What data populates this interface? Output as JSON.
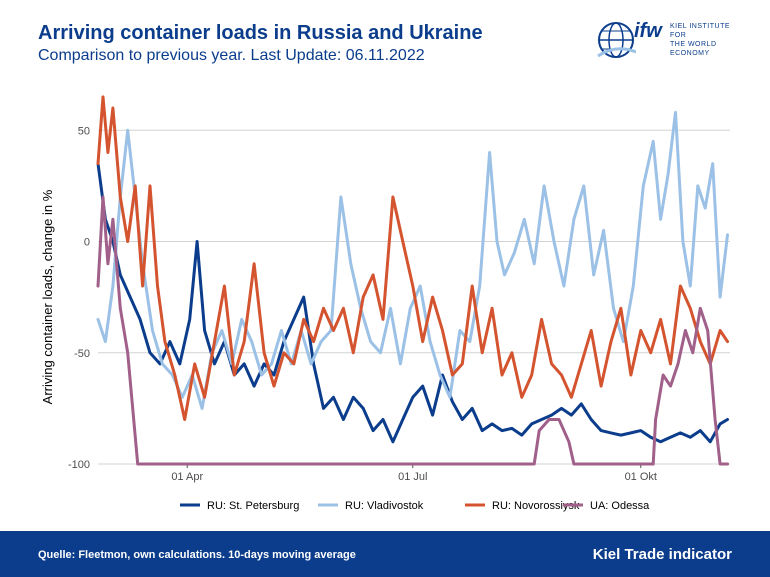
{
  "header": {
    "title": "Arriving container loads in Russia and Ukraine",
    "subtitle": "Comparison to previous year. Last Update: 06.11.2022"
  },
  "logo": {
    "brand": "ifw",
    "line1": "KIEL INSTITUTE FOR",
    "line2": "THE WORLD ECONOMY",
    "icon": "globe-icon"
  },
  "footer": {
    "source": "Quelle: Fleetmon, own calculations. 10-days moving average",
    "brand": "Kiel Trade indicator",
    "background": "#0b3d8c"
  },
  "chart_data": {
    "type": "line",
    "title": "",
    "xlabel": "",
    "ylabel": "Arriving container loads, change in %",
    "ylim": [
      -100,
      60
    ],
    "yticks": [
      -100,
      -50,
      0,
      50
    ],
    "xlim": [
      "2022-02-24",
      "2022-11-06"
    ],
    "xticks": [
      {
        "date": "2022-04-01",
        "label": "01 Apr"
      },
      {
        "date": "2022-07-01",
        "label": "01 Jul"
      },
      {
        "date": "2022-10-01",
        "label": "01 Okt"
      }
    ],
    "grid": "horizontal",
    "legend": "bottom",
    "series": [
      {
        "name": "RU: St. Petersburg",
        "color": "#0b3d8c",
        "points": [
          [
            "2022-02-24",
            35
          ],
          [
            "2022-02-27",
            10
          ],
          [
            "2022-03-02",
            0
          ],
          [
            "2022-03-05",
            -15
          ],
          [
            "2022-03-09",
            -25
          ],
          [
            "2022-03-13",
            -35
          ],
          [
            "2022-03-17",
            -50
          ],
          [
            "2022-03-21",
            -55
          ],
          [
            "2022-03-25",
            -45
          ],
          [
            "2022-03-29",
            -55
          ],
          [
            "2022-04-02",
            -35
          ],
          [
            "2022-04-05",
            0
          ],
          [
            "2022-04-08",
            -40
          ],
          [
            "2022-04-12",
            -55
          ],
          [
            "2022-04-16",
            -45
          ],
          [
            "2022-04-20",
            -60
          ],
          [
            "2022-04-24",
            -55
          ],
          [
            "2022-04-28",
            -65
          ],
          [
            "2022-05-02",
            -55
          ],
          [
            "2022-05-06",
            -60
          ],
          [
            "2022-05-10",
            -45
          ],
          [
            "2022-05-14",
            -35
          ],
          [
            "2022-05-18",
            -25
          ],
          [
            "2022-05-22",
            -55
          ],
          [
            "2022-05-26",
            -75
          ],
          [
            "2022-05-30",
            -70
          ],
          [
            "2022-06-03",
            -80
          ],
          [
            "2022-06-07",
            -70
          ],
          [
            "2022-06-11",
            -75
          ],
          [
            "2022-06-15",
            -85
          ],
          [
            "2022-06-19",
            -80
          ],
          [
            "2022-06-23",
            -90
          ],
          [
            "2022-06-27",
            -80
          ],
          [
            "2022-07-01",
            -70
          ],
          [
            "2022-07-05",
            -65
          ],
          [
            "2022-07-09",
            -78
          ],
          [
            "2022-07-13",
            -60
          ],
          [
            "2022-07-17",
            -72
          ],
          [
            "2022-07-21",
            -80
          ],
          [
            "2022-07-25",
            -75
          ],
          [
            "2022-07-29",
            -85
          ],
          [
            "2022-08-02",
            -82
          ],
          [
            "2022-08-06",
            -85
          ],
          [
            "2022-08-10",
            -84
          ],
          [
            "2022-08-14",
            -87
          ],
          [
            "2022-08-18",
            -82
          ],
          [
            "2022-08-22",
            -80
          ],
          [
            "2022-08-26",
            -78
          ],
          [
            "2022-08-30",
            -75
          ],
          [
            "2022-09-03",
            -78
          ],
          [
            "2022-09-07",
            -73
          ],
          [
            "2022-09-11",
            -80
          ],
          [
            "2022-09-15",
            -85
          ],
          [
            "2022-09-19",
            -86
          ],
          [
            "2022-09-23",
            -87
          ],
          [
            "2022-09-27",
            -86
          ],
          [
            "2022-10-01",
            -85
          ],
          [
            "2022-10-05",
            -88
          ],
          [
            "2022-10-09",
            -90
          ],
          [
            "2022-10-13",
            -88
          ],
          [
            "2022-10-17",
            -86
          ],
          [
            "2022-10-21",
            -88
          ],
          [
            "2022-10-25",
            -85
          ],
          [
            "2022-10-29",
            -90
          ],
          [
            "2022-11-02",
            -82
          ],
          [
            "2022-11-05",
            -80
          ]
        ]
      },
      {
        "name": "RU: Vladivostok",
        "color": "#9cc1e6",
        "points": [
          [
            "2022-02-24",
            -35
          ],
          [
            "2022-02-27",
            -45
          ],
          [
            "2022-03-02",
            -20
          ],
          [
            "2022-03-05",
            20
          ],
          [
            "2022-03-08",
            50
          ],
          [
            "2022-03-11",
            20
          ],
          [
            "2022-03-14",
            -10
          ],
          [
            "2022-03-18",
            -40
          ],
          [
            "2022-03-22",
            -55
          ],
          [
            "2022-03-26",
            -60
          ],
          [
            "2022-03-30",
            -70
          ],
          [
            "2022-04-03",
            -60
          ],
          [
            "2022-04-07",
            -75
          ],
          [
            "2022-04-11",
            -50
          ],
          [
            "2022-04-15",
            -40
          ],
          [
            "2022-04-19",
            -55
          ],
          [
            "2022-04-23",
            -35
          ],
          [
            "2022-04-27",
            -45
          ],
          [
            "2022-05-01",
            -60
          ],
          [
            "2022-05-05",
            -55
          ],
          [
            "2022-05-09",
            -40
          ],
          [
            "2022-05-13",
            -55
          ],
          [
            "2022-05-17",
            -40
          ],
          [
            "2022-05-21",
            -55
          ],
          [
            "2022-05-25",
            -45
          ],
          [
            "2022-05-29",
            -40
          ],
          [
            "2022-06-02",
            20
          ],
          [
            "2022-06-06",
            -10
          ],
          [
            "2022-06-10",
            -30
          ],
          [
            "2022-06-14",
            -45
          ],
          [
            "2022-06-18",
            -50
          ],
          [
            "2022-06-22",
            -30
          ],
          [
            "2022-06-26",
            -55
          ],
          [
            "2022-06-30",
            -30
          ],
          [
            "2022-07-04",
            -20
          ],
          [
            "2022-07-08",
            -45
          ],
          [
            "2022-07-12",
            -60
          ],
          [
            "2022-07-16",
            -70
          ],
          [
            "2022-07-20",
            -40
          ],
          [
            "2022-07-24",
            -45
          ],
          [
            "2022-07-28",
            -20
          ],
          [
            "2022-08-01",
            40
          ],
          [
            "2022-08-04",
            0
          ],
          [
            "2022-08-07",
            -15
          ],
          [
            "2022-08-11",
            -5
          ],
          [
            "2022-08-15",
            10
          ],
          [
            "2022-08-19",
            -10
          ],
          [
            "2022-08-23",
            25
          ],
          [
            "2022-08-27",
            0
          ],
          [
            "2022-08-31",
            -20
          ],
          [
            "2022-09-04",
            10
          ],
          [
            "2022-09-08",
            25
          ],
          [
            "2022-09-12",
            -15
          ],
          [
            "2022-09-16",
            5
          ],
          [
            "2022-09-20",
            -30
          ],
          [
            "2022-09-24",
            -45
          ],
          [
            "2022-09-28",
            -20
          ],
          [
            "2022-10-02",
            25
          ],
          [
            "2022-10-06",
            45
          ],
          [
            "2022-10-09",
            10
          ],
          [
            "2022-10-12",
            30
          ],
          [
            "2022-10-15",
            58
          ],
          [
            "2022-10-18",
            0
          ],
          [
            "2022-10-21",
            -20
          ],
          [
            "2022-10-24",
            25
          ],
          [
            "2022-10-27",
            15
          ],
          [
            "2022-10-30",
            35
          ],
          [
            "2022-11-02",
            -25
          ],
          [
            "2022-11-05",
            3
          ]
        ]
      },
      {
        "name": "RU: Novorossiysk",
        "color": "#d4542f",
        "points": [
          [
            "2022-02-24",
            35
          ],
          [
            "2022-02-26",
            65
          ],
          [
            "2022-02-28",
            40
          ],
          [
            "2022-03-02",
            60
          ],
          [
            "2022-03-05",
            20
          ],
          [
            "2022-03-08",
            0
          ],
          [
            "2022-03-11",
            25
          ],
          [
            "2022-03-14",
            -20
          ],
          [
            "2022-03-17",
            25
          ],
          [
            "2022-03-20",
            -20
          ],
          [
            "2022-03-23",
            -45
          ],
          [
            "2022-03-27",
            -60
          ],
          [
            "2022-03-31",
            -80
          ],
          [
            "2022-04-04",
            -55
          ],
          [
            "2022-04-08",
            -70
          ],
          [
            "2022-04-12",
            -45
          ],
          [
            "2022-04-16",
            -20
          ],
          [
            "2022-04-20",
            -60
          ],
          [
            "2022-04-24",
            -45
          ],
          [
            "2022-04-28",
            -10
          ],
          [
            "2022-05-02",
            -50
          ],
          [
            "2022-05-06",
            -65
          ],
          [
            "2022-05-10",
            -50
          ],
          [
            "2022-05-14",
            -55
          ],
          [
            "2022-05-18",
            -35
          ],
          [
            "2022-05-22",
            -45
          ],
          [
            "2022-05-26",
            -30
          ],
          [
            "2022-05-30",
            -40
          ],
          [
            "2022-06-03",
            -30
          ],
          [
            "2022-06-07",
            -50
          ],
          [
            "2022-06-11",
            -25
          ],
          [
            "2022-06-15",
            -15
          ],
          [
            "2022-06-19",
            -35
          ],
          [
            "2022-06-23",
            20
          ],
          [
            "2022-06-27",
            0
          ],
          [
            "2022-07-01",
            -20
          ],
          [
            "2022-07-05",
            -45
          ],
          [
            "2022-07-09",
            -25
          ],
          [
            "2022-07-13",
            -40
          ],
          [
            "2022-07-17",
            -60
          ],
          [
            "2022-07-21",
            -55
          ],
          [
            "2022-07-25",
            -20
          ],
          [
            "2022-07-29",
            -50
          ],
          [
            "2022-08-02",
            -30
          ],
          [
            "2022-08-06",
            -60
          ],
          [
            "2022-08-10",
            -50
          ],
          [
            "2022-08-14",
            -70
          ],
          [
            "2022-08-18",
            -60
          ],
          [
            "2022-08-22",
            -35
          ],
          [
            "2022-08-26",
            -55
          ],
          [
            "2022-08-30",
            -60
          ],
          [
            "2022-09-03",
            -70
          ],
          [
            "2022-09-07",
            -55
          ],
          [
            "2022-09-11",
            -40
          ],
          [
            "2022-09-15",
            -65
          ],
          [
            "2022-09-19",
            -45
          ],
          [
            "2022-09-23",
            -30
          ],
          [
            "2022-09-27",
            -60
          ],
          [
            "2022-10-01",
            -40
          ],
          [
            "2022-10-05",
            -50
          ],
          [
            "2022-10-09",
            -35
          ],
          [
            "2022-10-13",
            -55
          ],
          [
            "2022-10-17",
            -20
          ],
          [
            "2022-10-21",
            -30
          ],
          [
            "2022-10-25",
            -45
          ],
          [
            "2022-10-29",
            -55
          ],
          [
            "2022-11-02",
            -40
          ],
          [
            "2022-11-05",
            -45
          ]
        ]
      },
      {
        "name": "UA: Odessa",
        "color": "#a0608a",
        "points": [
          [
            "2022-02-24",
            -20
          ],
          [
            "2022-02-26",
            20
          ],
          [
            "2022-02-28",
            -10
          ],
          [
            "2022-03-02",
            10
          ],
          [
            "2022-03-05",
            -30
          ],
          [
            "2022-03-08",
            -50
          ],
          [
            "2022-03-12",
            -100
          ],
          [
            "2022-08-19",
            -100
          ],
          [
            "2022-08-21",
            -85
          ],
          [
            "2022-08-25",
            -80
          ],
          [
            "2022-08-29",
            -80
          ],
          [
            "2022-09-02",
            -90
          ],
          [
            "2022-09-04",
            -100
          ],
          [
            "2022-10-06",
            -100
          ],
          [
            "2022-10-07",
            -80
          ],
          [
            "2022-10-10",
            -60
          ],
          [
            "2022-10-13",
            -65
          ],
          [
            "2022-10-16",
            -55
          ],
          [
            "2022-10-19",
            -40
          ],
          [
            "2022-10-22",
            -50
          ],
          [
            "2022-10-25",
            -30
          ],
          [
            "2022-10-28",
            -40
          ],
          [
            "2022-10-31",
            -80
          ],
          [
            "2022-11-02",
            -100
          ],
          [
            "2022-11-05",
            -100
          ]
        ]
      }
    ]
  }
}
